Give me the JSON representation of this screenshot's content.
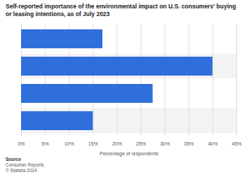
{
  "chart_data": {
    "type": "bar",
    "orientation": "horizontal",
    "title": "Self-reported importance of the environmental impact on U.S. consumers' buying or leasing intentions, as of July 2023",
    "categories": [
      null,
      null,
      null,
      null
    ],
    "values": [
      17,
      40,
      27.5,
      15
    ],
    "color": "#2f6fdc",
    "xlim": [
      0,
      45
    ],
    "xticks": [
      {
        "value": 0,
        "label": "0%"
      },
      {
        "value": 5,
        "label": "5%"
      },
      {
        "value": 10,
        "label": "10%"
      },
      {
        "value": 15,
        "label": "15%"
      },
      {
        "value": 20,
        "label": "20%"
      },
      {
        "value": 25,
        "label": "25%"
      },
      {
        "value": 30,
        "label": "30%"
      },
      {
        "value": 35,
        "label": "35%"
      },
      {
        "value": 40,
        "label": "40%"
      },
      {
        "value": 45,
        "label": "45%"
      }
    ],
    "xlabel": "Percentage of respondents",
    "grid": true,
    "tick_labels": "x",
    "source_label": "Source",
    "source": "Consumer Reports",
    "credit": "© Statista 2024"
  }
}
